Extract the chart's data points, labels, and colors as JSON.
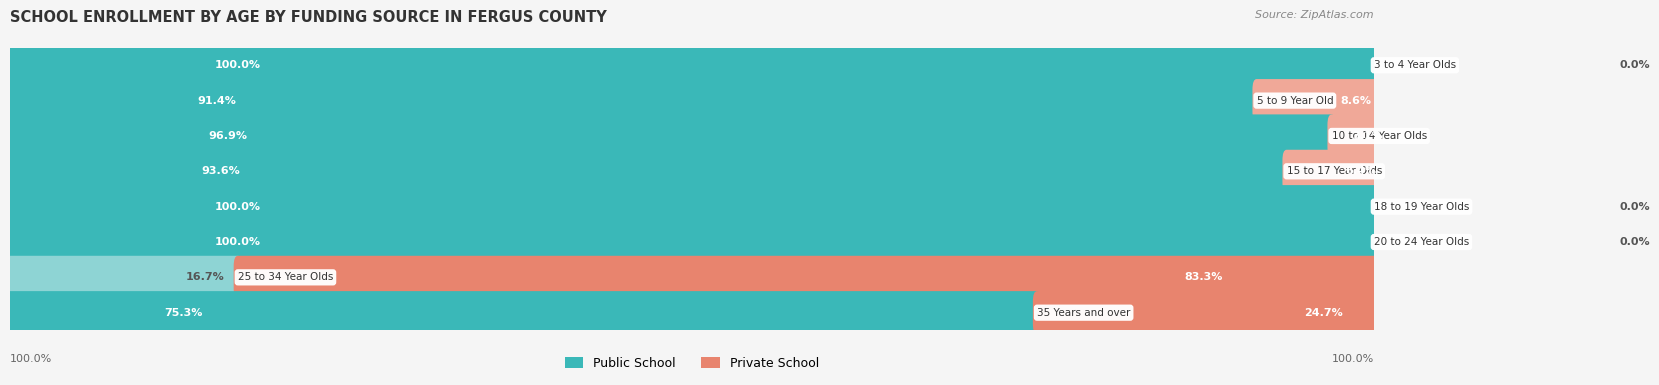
{
  "title": "SCHOOL ENROLLMENT BY AGE BY FUNDING SOURCE IN FERGUS COUNTY",
  "source": "Source: ZipAtlas.com",
  "categories": [
    "3 to 4 Year Olds",
    "5 to 9 Year Old",
    "10 to 14 Year Olds",
    "15 to 17 Year Olds",
    "18 to 19 Year Olds",
    "20 to 24 Year Olds",
    "25 to 34 Year Olds",
    "35 Years and over"
  ],
  "public": [
    100.0,
    91.4,
    96.9,
    93.6,
    100.0,
    100.0,
    16.7,
    75.3
  ],
  "private": [
    0.0,
    8.6,
    3.1,
    6.4,
    0.0,
    0.0,
    83.3,
    24.7
  ],
  "public_color": "#3ab8b8",
  "private_color": "#e8846e",
  "public_color_light": "#8ed4d4",
  "private_color_light": "#f0a898",
  "bg_color": "#f5f5f5",
  "row_color_odd": "#ffffff",
  "row_color_even": "#ebebeb",
  "legend_public": "Public School",
  "legend_private": "Private School",
  "x_left_label": "100.0%",
  "x_right_label": "100.0%",
  "total_width": 100.0
}
